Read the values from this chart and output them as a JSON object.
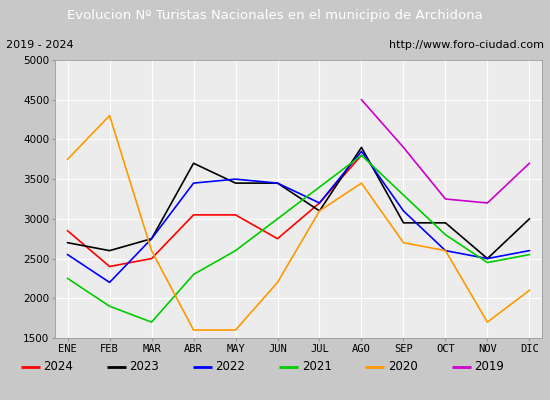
{
  "title": "Evolucion Nº Turistas Nacionales en el municipio de Archidona",
  "subtitle_left": "2019 - 2024",
  "subtitle_right": "http://www.foro-ciudad.com",
  "months": [
    "ENE",
    "FEB",
    "MAR",
    "ABR",
    "MAY",
    "JUN",
    "JUL",
    "AGO",
    "SEP",
    "OCT",
    "NOV",
    "DIC"
  ],
  "ylim": [
    1500,
    5000
  ],
  "yticks": [
    1500,
    2000,
    2500,
    3000,
    3500,
    4000,
    4500,
    5000
  ],
  "series": {
    "2024": {
      "color": "#ff0000",
      "values": [
        2850,
        2400,
        2500,
        3050,
        3050,
        2750,
        3200,
        3800,
        null,
        null,
        null,
        null
      ]
    },
    "2023": {
      "color": "#000000",
      "values": [
        2700,
        2600,
        2750,
        3700,
        3450,
        3450,
        3100,
        3900,
        2950,
        2950,
        2500,
        3000
      ]
    },
    "2022": {
      "color": "#0000ff",
      "values": [
        2550,
        2200,
        2750,
        3450,
        3500,
        3450,
        3200,
        3850,
        3100,
        2600,
        2500,
        2600
      ]
    },
    "2021": {
      "color": "#00cc00",
      "values": [
        2250,
        1900,
        1700,
        2300,
        2600,
        3000,
        3400,
        3800,
        3300,
        2800,
        2450,
        2550
      ]
    },
    "2020": {
      "color": "#ff9900",
      "values": [
        3750,
        4300,
        2600,
        1600,
        1600,
        2200,
        3100,
        3450,
        2700,
        2600,
        1700,
        2100
      ]
    },
    "2019": {
      "color": "#cc00cc",
      "values": [
        null,
        null,
        null,
        null,
        null,
        null,
        null,
        4500,
        3900,
        3250,
        3200,
        3700
      ]
    }
  },
  "title_bg_color": "#4472c4",
  "title_font_color": "#ffffff",
  "plot_bg_color": "#ececec",
  "grid_color": "#ffffff",
  "outer_bg_color": "#c8c8c8",
  "subtitle_bg_color": "#e0e0e0",
  "legend_bg_color": "#ffffff"
}
